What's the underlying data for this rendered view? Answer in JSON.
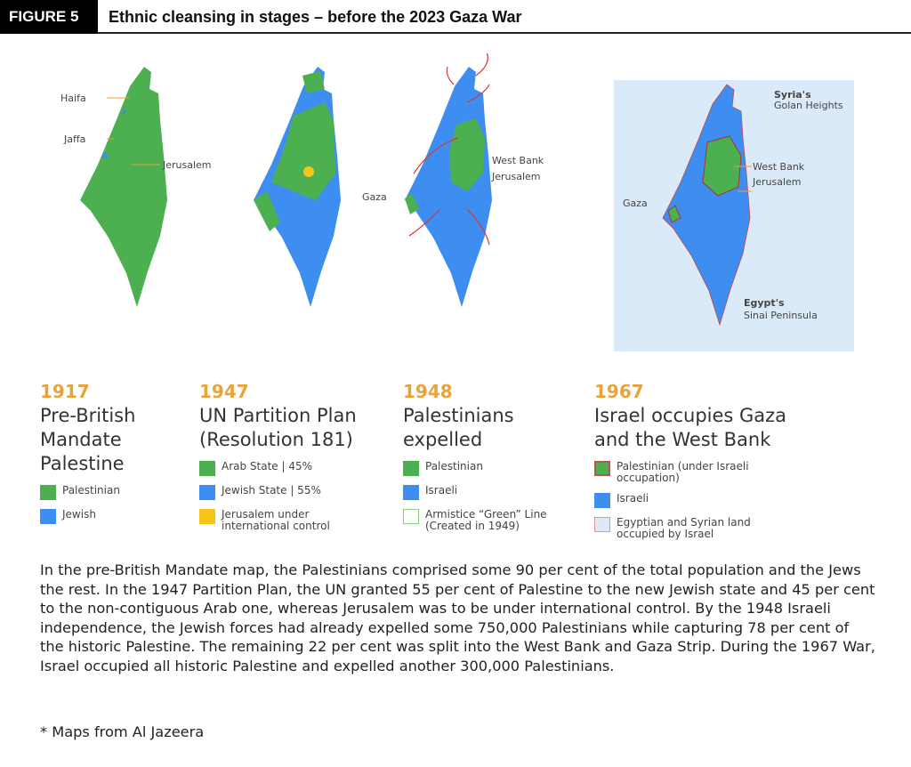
{
  "header": {
    "figure_label": "FIGURE 5",
    "title": "Ethnic cleansing in stages – before the 2023 Gaza War"
  },
  "maps": {
    "m1": {
      "labels": [
        "Haifa",
        "Jaffa",
        "Jerusalem"
      ]
    },
    "m3": {
      "labels": [
        "West Bank",
        "Jerusalem",
        "Gaza"
      ]
    },
    "m4": {
      "labels": [
        "Syria's",
        "Golan Heights",
        "West Bank",
        "Jerusalem",
        "Gaza",
        "Egypt's",
        "Sinai Peninsula"
      ]
    }
  },
  "panels": [
    {
      "year": "1917",
      "heading": [
        "Pre-British",
        "Mandate",
        "Palestine"
      ],
      "legend": [
        {
          "label": "Palestinian",
          "color": "#4caf50"
        },
        {
          "label": "Jewish",
          "color": "#3d8ef0"
        }
      ]
    },
    {
      "year": "1947",
      "heading": [
        "UN Partition Plan",
        "(Resolution 181)"
      ],
      "legend": [
        {
          "label": "Arab State | 45%",
          "color": "#4caf50"
        },
        {
          "label": "Jewish State | 55%",
          "color": "#3d8ef0"
        },
        {
          "label": "Jerusalem under international control",
          "color": "#f5c518"
        }
      ]
    },
    {
      "year": "1948",
      "heading": [
        "Palestinians",
        "expelled"
      ],
      "legend": [
        {
          "label": "Palestinian",
          "color": "#4caf50"
        },
        {
          "label": "Israeli",
          "color": "#3d8ef0"
        },
        {
          "label": "Armistice “Green” Line (Created in 1949)",
          "color": "#ffffff"
        }
      ]
    },
    {
      "year": "1967",
      "heading": [
        "Israel occupies Gaza",
        "and the West Bank"
      ],
      "legend": [
        {
          "label": "Palestinian (under Israeli occupation)",
          "color": "#4caf50"
        },
        {
          "label": "Israeli",
          "color": "#3d8ef0"
        },
        {
          "label": "Egyptian and Syrian land occupied by Israel",
          "color": "#dbeaf8"
        }
      ]
    }
  ],
  "body": "In the pre-British Mandate map, the Palestinians comprised some 90 per cent of the total population and the Jews the rest. In the 1947 Partition Plan, the UN granted 55 per cent of Palestine to the new Jewish state and 45 per cent to the non-contiguous Arab one, whereas Jerusalem was to be under international control. By the 1948 Israeli independence, the Jewish forces had already expelled some 750,000 Palestinians while capturing 78 per cent of the historic Palestine. The remaining 22 per cent was split into the West Bank and Gaza Strip. During the 1967 War, Israel occupied all historic Palestine and expelled another 300,000 Palestinians.",
  "note": "* Maps from Al Jazeera"
}
